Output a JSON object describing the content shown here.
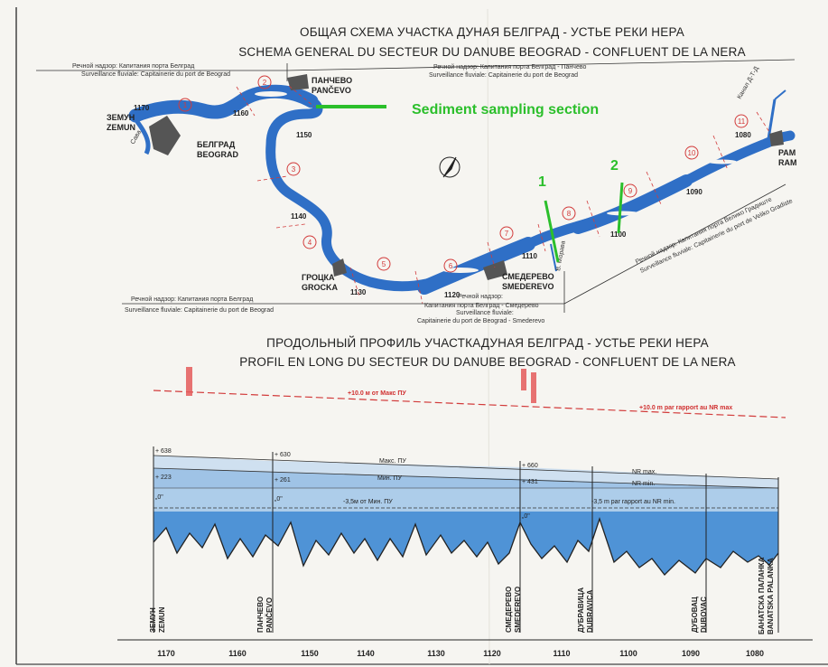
{
  "map": {
    "title_ru": "ОБЩАЯ СХЕМА УЧАСТКА ДУНАЯ БЕЛГРАД - УСТЬЕ РЕКИ НЕРА",
    "title_fr": "SCHEMA GENERAL DU SECTEUR DU DANUBE BEOGRAD - CONFLUENT DE LA NERA",
    "sediment_label": "Sediment sampling section",
    "section_marker_1": "1",
    "section_marker_2": "2",
    "notes": {
      "tl_ru": "Речной надзор: Капитания порта Белград",
      "tl_fr": "Surveillance fluviale: Capitainerie du port de Beograd",
      "tc_ru": "Речной надзор: Капитания порта Белград - Панчево",
      "tc_fr": "Surveillance fluviale: Capitainerie du port de Beograd",
      "bl_ru": "Речной надзор: Капитания порта Белград",
      "bl_fr": "Surveillance fluviale: Capitainerie du port de Beograd",
      "bc1": "Речной надзор:",
      "bc2": "Капитания порта Белград - Смедерево",
      "bc3": "Surveillance fluviale:",
      "bc4": "Capitainerie du port de Beograd - Smederevo",
      "r_ru": "Речной надзор: Капитания порта Велико Градиште",
      "r_fr": "Surveillance fluviale: Capitainerie du port de Veliko Gradiste",
      "kanal": "Канал Д-Т-Д",
      "moravica": "В. Морава"
    },
    "towns": {
      "zemun_ru": "ЗЕМУН",
      "zemun_lat": "ZEMUN",
      "beograd_ru": "БЕЛГРАД",
      "beograd_lat": "BEOGRAD",
      "pancevo_ru": "ПАНЧЕВО",
      "pancevo_lat": "PANČEVO",
      "grocka_ru": "ГРОЦКА",
      "grocka_lat": "GROCKA",
      "smederevo_ru": "СМЕДЕРЕВО",
      "smederevo_lat": "SMEDEREVO",
      "ram_ru": "РАМ",
      "ram_lat": "RAM",
      "sava": "Сава"
    },
    "km_marks": [
      "1170",
      "1160",
      "1150",
      "1140",
      "1130",
      "1120",
      "1110",
      "1100",
      "1090",
      "1080"
    ],
    "sections": [
      "1",
      "2",
      "3",
      "4",
      "5",
      "6",
      "7",
      "8",
      "9",
      "10",
      "11"
    ]
  },
  "profile": {
    "title_ru": "ПРОДОЛЬНЫЙ ПРОФИЛЬ УЧАСТКАДУНАЯ БЕЛГРАД - УСТЬЕ РЕКИ НЕРА",
    "title_fr": "PROFIL EN LONG DU SECTEUR DU DANUBE BEOGRAD - CONFLUENT DE LA NERA",
    "red_line_ru": "+10.0 м от Макс ПУ",
    "red_line_fr": "+10.0 m par rapport au NR max",
    "max_ru": "Макс. ПУ",
    "min_ru": "Мин. ПУ",
    "nr_max": "NR max.",
    "nr_min": "NR min.",
    "zero_ru": "-3,5м от Мин. ПУ",
    "zero_fr": "-3,5 m par rapport au NR min.",
    "levels": {
      "zemun_max": "+ 638",
      "zemun_min": "+ 223",
      "zemun_zero": "„0\"",
      "pancevo_max": "+ 630",
      "pancevo_min": "+ 261",
      "pancevo_zero": "„0\"",
      "smed_max": "+ 660",
      "smed_min": "+ 431",
      "smed_zero": "„0\""
    },
    "stations": [
      {
        "ru": "ЗЕМУН",
        "lat": "ZEMUN"
      },
      {
        "ru": "ПАНЧЕВО",
        "lat": "PANČEVO"
      },
      {
        "ru": "СМЕДЕРЕВО",
        "lat": "SMEDEREVO"
      },
      {
        "ru": "ДУБРАВИЦА",
        "lat": "DUBRAVICA"
      },
      {
        "ru": "ДУБОВАЦ",
        "lat": "DUBOVAC"
      },
      {
        "ru": "БАНАТСКА ПАЛАНКА",
        "lat": "BANATSKA PALANKA"
      }
    ],
    "ticks": [
      "1170",
      "1160",
      "1150",
      "1140",
      "1130",
      "1120",
      "1110",
      "1100",
      "1090",
      "1080"
    ]
  },
  "colors": {
    "river": "#2f6fc6",
    "profile_light": "#cfe0f0",
    "profile_mid": "#9fc3e6",
    "profile_deep": "#4f93d6",
    "red": "#d23b3b",
    "green": "#2bbf2b"
  }
}
